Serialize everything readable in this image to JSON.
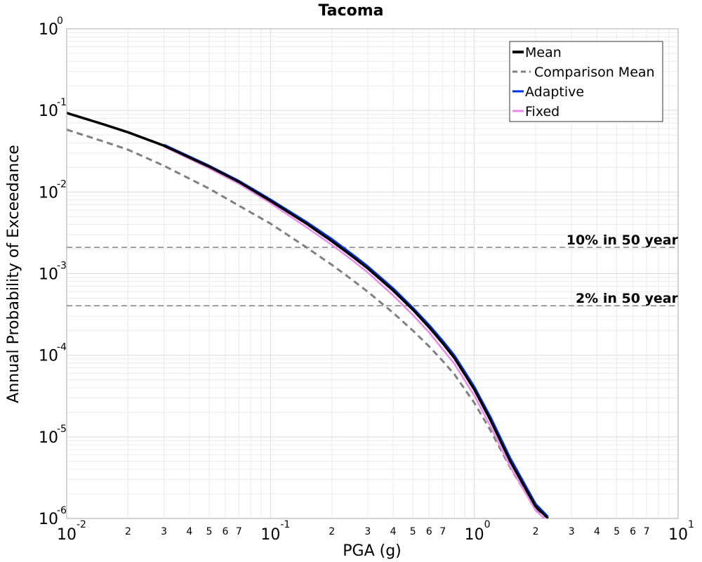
{
  "chart_data": {
    "type": "line",
    "title": "Tacoma",
    "xlabel": "PGA (g)",
    "ylabel": "Annual Probability of Exceedance",
    "x_scale": "log",
    "y_scale": "log",
    "xlim": [
      0.01,
      10
    ],
    "ylim": [
      1e-06,
      1
    ],
    "grid": true,
    "legend_position": "top-right",
    "x_ticks": [
      {
        "value": 0.01,
        "base": "10",
        "exp": "-2",
        "major": true
      },
      {
        "value": 0.02,
        "label": "2"
      },
      {
        "value": 0.03,
        "label": "3"
      },
      {
        "value": 0.04,
        "label": "4"
      },
      {
        "value": 0.05,
        "label": "5"
      },
      {
        "value": 0.06,
        "label": "6"
      },
      {
        "value": 0.07,
        "label": "7"
      },
      {
        "value": 0.1,
        "base": "10",
        "exp": "-1",
        "major": true
      },
      {
        "value": 0.2,
        "label": "2"
      },
      {
        "value": 0.3,
        "label": "3"
      },
      {
        "value": 0.4,
        "label": "4"
      },
      {
        "value": 0.5,
        "label": "5"
      },
      {
        "value": 0.6,
        "label": "6"
      },
      {
        "value": 0.7,
        "label": "7"
      },
      {
        "value": 1,
        "base": "10",
        "exp": "0",
        "major": true
      },
      {
        "value": 2,
        "label": "2"
      },
      {
        "value": 3,
        "label": "3"
      },
      {
        "value": 4,
        "label": "4"
      },
      {
        "value": 5,
        "label": "5"
      },
      {
        "value": 6,
        "label": "6"
      },
      {
        "value": 7,
        "label": "7"
      },
      {
        "value": 10,
        "base": "10",
        "exp": "1",
        "major": true
      }
    ],
    "y_ticks": [
      {
        "value": 1,
        "base": "10",
        "exp": "0"
      },
      {
        "value": 0.1,
        "base": "10",
        "exp": "-1"
      },
      {
        "value": 0.01,
        "base": "10",
        "exp": "-2"
      },
      {
        "value": 0.001,
        "base": "10",
        "exp": "-3"
      },
      {
        "value": 0.0001,
        "base": "10",
        "exp": "-4"
      },
      {
        "value": 1e-05,
        "base": "10",
        "exp": "-5"
      },
      {
        "value": 1e-06,
        "base": "10",
        "exp": "-6"
      }
    ],
    "reference_lines": [
      {
        "label": "10% in 50 year",
        "y": 0.0021,
        "color": "#808080"
      },
      {
        "label": "2% in 50 year",
        "y": 0.000404,
        "color": "#808080"
      }
    ],
    "series": [
      {
        "name": "Mean",
        "color": "#000000",
        "style": "solid",
        "x": [
          0.01,
          0.015,
          0.02,
          0.03,
          0.05,
          0.07,
          0.1,
          0.15,
          0.2,
          0.25,
          0.3,
          0.4,
          0.5,
          0.6,
          0.7,
          0.8,
          1.0,
          1.2,
          1.5,
          2.0,
          2.3
        ],
        "y": [
          0.093,
          0.068,
          0.054,
          0.037,
          0.0205,
          0.0133,
          0.0078,
          0.0041,
          0.0025,
          0.00165,
          0.00116,
          0.00062,
          0.00036,
          0.00022,
          0.00014,
          9.2e-05,
          3.8e-05,
          1.6e-05,
          5e-06,
          1.4e-06,
          1e-06
        ]
      },
      {
        "name": "Comparison Mean",
        "color": "#808080",
        "style": "dashed",
        "x": [
          0.01,
          0.015,
          0.02,
          0.03,
          0.05,
          0.07,
          0.1,
          0.15,
          0.2,
          0.25,
          0.3,
          0.4,
          0.5,
          0.6,
          0.7,
          0.8,
          1.0,
          1.2,
          1.5,
          2.0,
          2.2
        ],
        "y": [
          0.058,
          0.042,
          0.033,
          0.021,
          0.011,
          0.0068,
          0.0041,
          0.0021,
          0.00128,
          0.00085,
          0.0006,
          0.00033,
          0.0002,
          0.000128,
          8.5e-05,
          5.8e-05,
          2.6e-05,
          1.2e-05,
          4.2e-06,
          1.3e-06,
          1e-06
        ]
      },
      {
        "name": "Adaptive",
        "color": "#0033ee",
        "style": "solid",
        "x": [
          0.03,
          0.05,
          0.07,
          0.1,
          0.15,
          0.2,
          0.25,
          0.3,
          0.4,
          0.5,
          0.6,
          0.7,
          0.8,
          1.0,
          1.2,
          1.5,
          2.0,
          2.3
        ],
        "y": [
          0.038,
          0.021,
          0.0137,
          0.0081,
          0.0043,
          0.00265,
          0.00175,
          0.00123,
          0.00066,
          0.00038,
          0.000235,
          0.00015,
          9.9e-05,
          4.1e-05,
          1.75e-05,
          5.5e-06,
          1.5e-06,
          1.05e-06
        ]
      },
      {
        "name": "Fixed",
        "color": "#ee88ee",
        "style": "solid",
        "x": [
          0.03,
          0.05,
          0.07,
          0.1,
          0.15,
          0.2,
          0.25,
          0.3,
          0.4,
          0.5,
          0.6,
          0.7,
          0.8,
          1.0,
          1.2,
          1.5,
          2.0,
          2.2
        ],
        "y": [
          0.036,
          0.0195,
          0.0126,
          0.0073,
          0.0037,
          0.00225,
          0.00148,
          0.00103,
          0.00054,
          0.00031,
          0.00019,
          0.000118,
          7.8e-05,
          3.2e-05,
          1.35e-05,
          4.3e-06,
          1.25e-06,
          1e-06
        ]
      }
    ]
  }
}
